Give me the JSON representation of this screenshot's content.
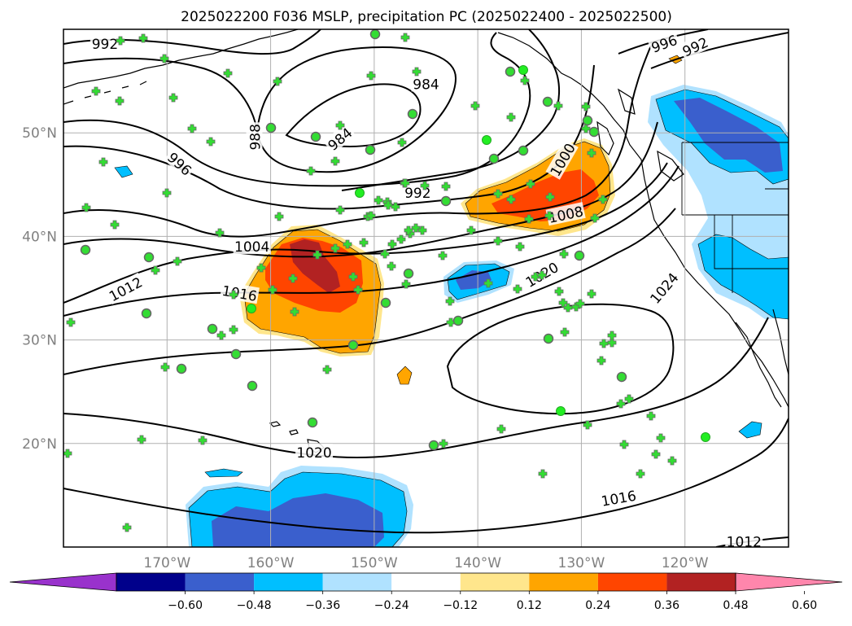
{
  "title": "2025022200 F036 MSLP, precipitation PC (2025022400 - 2025022500)",
  "map": {
    "lon_labels": [
      "170°W",
      "160°W",
      "150°W",
      "140°W",
      "130°W",
      "120°W"
    ],
    "lat_labels": [
      "50°N",
      "40°N",
      "30°N",
      "20°N"
    ],
    "lon_ticks": [
      -170,
      -160,
      -150,
      -140,
      -130,
      -120
    ],
    "lat_ticks": [
      50,
      40,
      30,
      20
    ],
    "lon_range": [
      -180,
      -110
    ],
    "lat_range": [
      10,
      60
    ],
    "grid": true,
    "isobar_labels": [
      {
        "text": "992",
        "lon": -176,
        "lat": 58.6
      },
      {
        "text": "984",
        "lon": -145,
        "lat": 54.7
      },
      {
        "text": "988",
        "lon": -161.5,
        "lat": 49.6,
        "angle": -90
      },
      {
        "text": "984",
        "lon": -153.3,
        "lat": 49.4,
        "angle": -40
      },
      {
        "text": "996",
        "lon": -168.8,
        "lat": 47,
        "angle": 42
      },
      {
        "text": "992",
        "lon": -145.8,
        "lat": 44.2
      },
      {
        "text": "1000",
        "lon": -131.8,
        "lat": 47.4,
        "angle": -60
      },
      {
        "text": "1004",
        "lon": -161.8,
        "lat": 39
      },
      {
        "text": "1008",
        "lon": -131.5,
        "lat": 42.1,
        "angle": -12
      },
      {
        "text": "1012",
        "lon": -174,
        "lat": 34.9,
        "angle": -28
      },
      {
        "text": "1016",
        "lon": -163,
        "lat": 34.5,
        "angle": 10
      },
      {
        "text": "1020",
        "lon": -133.8,
        "lat": 36.3,
        "angle": -30
      },
      {
        "text": "1024",
        "lon": -122,
        "lat": 35,
        "angle": -50
      },
      {
        "text": "1020",
        "lon": -155.8,
        "lat": 19.1
      },
      {
        "text": "1016",
        "lon": -126.4,
        "lat": 14.7,
        "angle": -10
      },
      {
        "text": "1012",
        "lon": -114.3,
        "lat": 10.5
      },
      {
        "text": "996",
        "lon": -122,
        "lat": 58.6,
        "angle": -20
      },
      {
        "text": "992",
        "lon": -119,
        "lat": 58.3,
        "angle": -25
      }
    ]
  },
  "colorbar": {
    "tick_labels": [
      "−0.60",
      "−0.48",
      "−0.36",
      "−0.24",
      "−0.12",
      "0.12",
      "0.24",
      "0.36",
      "0.48",
      "0.60"
    ],
    "colors": [
      "#9932cc",
      "#00008b",
      "#3a5fcd",
      "#00bfff",
      "#b0e2ff",
      "#ffffff",
      "#ffe68c",
      "#ffa500",
      "#ff4500",
      "#b22222",
      "#ff86ac"
    ]
  }
}
